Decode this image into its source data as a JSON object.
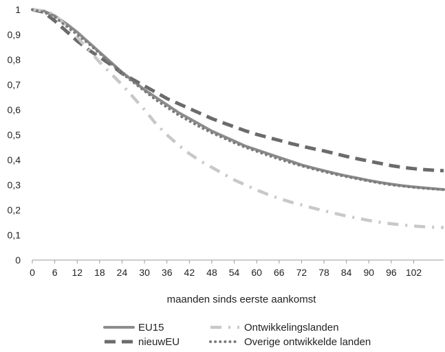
{
  "chart_data": {
    "type": "line",
    "title": "",
    "xlabel": "maanden sinds eerste aankomst",
    "ylabel": "",
    "xlim": [
      0,
      110
    ],
    "ylim": [
      0,
      1
    ],
    "x_ticks": [
      0,
      6,
      12,
      18,
      24,
      30,
      36,
      42,
      48,
      54,
      60,
      66,
      72,
      78,
      84,
      90,
      96,
      102
    ],
    "y_ticks": [
      0,
      0.1,
      0.2,
      0.3,
      0.4,
      0.5,
      0.6,
      0.7,
      0.8,
      0.9,
      1
    ],
    "y_tick_labels": [
      "0",
      "0,1",
      "0,2",
      "0,3",
      "0,4",
      "0,5",
      "0,6",
      "0,7",
      "0,8",
      "0,9",
      "1"
    ],
    "grid": false,
    "legend_position": "bottom",
    "series": [
      {
        "name": "EU15",
        "color": "#8c8c8c",
        "style": "solid",
        "x": [
          0,
          3,
          6,
          9,
          12,
          15,
          18,
          21,
          24,
          27,
          30,
          33,
          36,
          39,
          42,
          45,
          48,
          51,
          54,
          57,
          60,
          63,
          66,
          69,
          72,
          75,
          78,
          81,
          84,
          87,
          90,
          93,
          96,
          99,
          102,
          105,
          108,
          110
        ],
        "y": [
          1.0,
          0.995,
          0.975,
          0.945,
          0.91,
          0.87,
          0.83,
          0.79,
          0.75,
          0.715,
          0.68,
          0.65,
          0.62,
          0.59,
          0.565,
          0.54,
          0.515,
          0.495,
          0.475,
          0.455,
          0.44,
          0.425,
          0.41,
          0.395,
          0.38,
          0.368,
          0.357,
          0.346,
          0.336,
          0.327,
          0.318,
          0.31,
          0.303,
          0.297,
          0.292,
          0.288,
          0.284,
          0.282
        ]
      },
      {
        "name": "nieuwEU",
        "color": "#6b6b6b",
        "style": "dashed",
        "x": [
          0,
          3,
          6,
          9,
          12,
          15,
          18,
          21,
          24,
          27,
          30,
          33,
          36,
          39,
          42,
          45,
          48,
          51,
          54,
          57,
          60,
          63,
          66,
          69,
          72,
          75,
          78,
          81,
          84,
          87,
          90,
          93,
          96,
          99,
          102,
          105,
          108,
          110
        ],
        "y": [
          1.0,
          0.99,
          0.955,
          0.915,
          0.875,
          0.84,
          0.81,
          0.78,
          0.745,
          0.72,
          0.695,
          0.67,
          0.645,
          0.625,
          0.605,
          0.585,
          0.565,
          0.548,
          0.532,
          0.516,
          0.502,
          0.49,
          0.478,
          0.466,
          0.455,
          0.445,
          0.436,
          0.425,
          0.414,
          0.404,
          0.395,
          0.386,
          0.377,
          0.37,
          0.365,
          0.361,
          0.358,
          0.357
        ]
      },
      {
        "name": "Ontwikkelingslanden",
        "color": "#c8c8c8",
        "style": "dashdot",
        "x": [
          0,
          3,
          6,
          9,
          12,
          15,
          18,
          21,
          24,
          27,
          30,
          33,
          36,
          39,
          42,
          45,
          48,
          51,
          54,
          57,
          60,
          63,
          66,
          69,
          72,
          75,
          78,
          81,
          84,
          87,
          90,
          93,
          96,
          99,
          102,
          105,
          108,
          110
        ],
        "y": [
          1.0,
          0.995,
          0.98,
          0.935,
          0.89,
          0.84,
          0.79,
          0.745,
          0.7,
          0.65,
          0.6,
          0.545,
          0.5,
          0.46,
          0.425,
          0.395,
          0.37,
          0.345,
          0.32,
          0.3,
          0.28,
          0.262,
          0.246,
          0.232,
          0.22,
          0.208,
          0.197,
          0.186,
          0.176,
          0.167,
          0.158,
          0.151,
          0.145,
          0.14,
          0.136,
          0.133,
          0.131,
          0.13
        ]
      },
      {
        "name": "Overige ontwikkelde landen",
        "color": "#7c7c7c",
        "style": "dotted",
        "x": [
          0,
          3,
          6,
          9,
          12,
          15,
          18,
          21,
          24,
          27,
          30,
          33,
          36,
          39,
          42,
          45,
          48,
          51,
          54,
          57,
          60,
          63,
          66,
          69,
          72,
          75,
          78,
          81,
          84,
          87,
          90,
          93,
          96,
          99,
          102,
          105,
          108,
          110
        ],
        "y": [
          1.0,
          0.99,
          0.97,
          0.935,
          0.9,
          0.865,
          0.825,
          0.785,
          0.745,
          0.71,
          0.675,
          0.64,
          0.61,
          0.58,
          0.555,
          0.53,
          0.508,
          0.488,
          0.468,
          0.45,
          0.434,
          0.418,
          0.403,
          0.389,
          0.376,
          0.364,
          0.353,
          0.342,
          0.333,
          0.324,
          0.315,
          0.307,
          0.3,
          0.295,
          0.29,
          0.286,
          0.283,
          0.281
        ]
      }
    ]
  }
}
